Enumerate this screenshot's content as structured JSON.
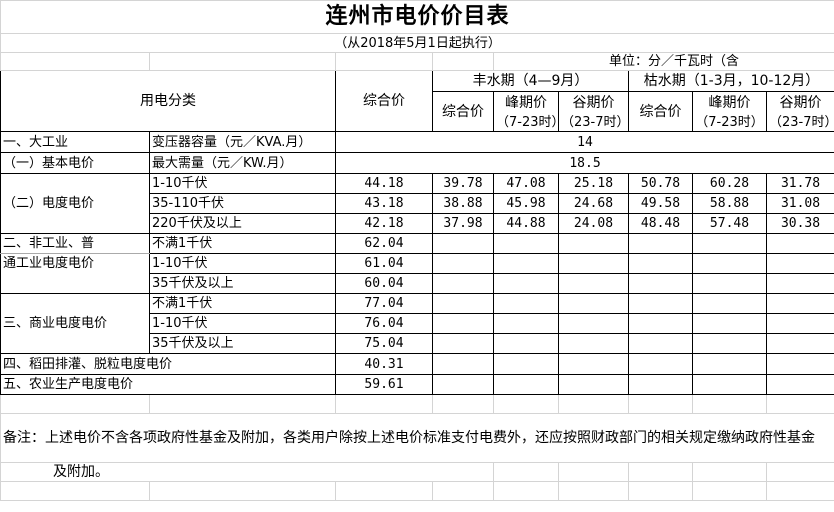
{
  "title": "连州市电价价目表",
  "subtitle": "（从2018年5月1日起执行）",
  "unit": "单位：分／千瓦时（含",
  "header": {
    "category": "用电分类",
    "composite": "综合价",
    "wet_season": "丰水期（4—9月）",
    "dry_season": "枯水期（1-3月，10-12月）",
    "sub_composite": "综合价",
    "peak": "峰期价",
    "valley": "谷期价",
    "peak_hours": "（7-23时）",
    "valley_hours": "（23-7时）"
  },
  "basic": {
    "cat1": "一、大工业",
    "cat1_sub": "（一）基本电价",
    "row1_label": "变压器容量（元／KVA.月）",
    "row1_value": "14",
    "row2_label": "最大需量（元／KW.月）",
    "row2_value": "18.5"
  },
  "energy": {
    "cat": "（二）电度电价",
    "rows": [
      {
        "label": "1-10千伏",
        "v": [
          "44.18",
          "39.78",
          "47.08",
          "25.18",
          "50.78",
          "60.28",
          "31.78"
        ]
      },
      {
        "label": "35-110千伏",
        "v": [
          "43.18",
          "38.88",
          "45.98",
          "24.68",
          "49.58",
          "58.88",
          "31.08"
        ]
      },
      {
        "label": "220千伏及以上",
        "v": [
          "42.18",
          "37.98",
          "44.88",
          "24.08",
          "48.48",
          "57.48",
          "30.38"
        ]
      }
    ]
  },
  "nonindustrial": {
    "cat_line1": "二、非工业、普",
    "cat_line2": "通工业电度电价",
    "rows": [
      {
        "label": "不满1千伏",
        "v": "62.04"
      },
      {
        "label": "1-10千伏",
        "v": "61.04"
      },
      {
        "label": "35千伏及以上",
        "v": "60.04"
      }
    ]
  },
  "commercial": {
    "cat": "三、商业电度电价",
    "rows": [
      {
        "label": "不满1千伏",
        "v": "77.04"
      },
      {
        "label": "1-10千伏",
        "v": "76.04"
      },
      {
        "label": "35千伏及以上",
        "v": "75.04"
      }
    ]
  },
  "irrigation": {
    "label": "四、稻田排灌、脱粒电度电价",
    "v": "40.31"
  },
  "agriculture": {
    "label": "五、农业生产电度电价",
    "v": "59.61"
  },
  "note": {
    "line1": "备注：上述电价不含各项政府性基金及附加，各类用户除按上述电价标准支付电费外，还应按照财政部门的相关规定缴纳政府性基金",
    "line2": "及附加。"
  }
}
